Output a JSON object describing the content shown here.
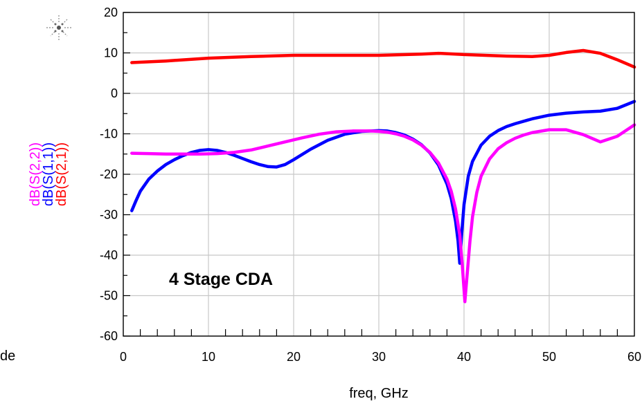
{
  "chart_data": {
    "type": "line",
    "title": "",
    "xlabel": "freq, GHz",
    "ylabels": [
      "dB(S(2,1))",
      "dB(S(1,1))",
      "dB(S(2,2))"
    ],
    "xlim": [
      0,
      60
    ],
    "ylim": [
      -60,
      20
    ],
    "xticks": [
      0,
      10,
      20,
      30,
      40,
      50,
      60
    ],
    "yticks": [
      20,
      10,
      0,
      -10,
      -20,
      -30,
      -40,
      -50,
      -60
    ],
    "grid": true,
    "annotation": "4 Stage CDA",
    "left_fragment": "de",
    "series": [
      {
        "name": "dB(S(2,1))",
        "color": "#ff0000",
        "x": [
          1,
          5,
          10,
          15,
          20,
          25,
          30,
          35,
          37,
          40,
          45,
          48,
          50,
          52,
          54,
          56,
          58,
          60
        ],
        "y": [
          7.6,
          8.0,
          8.7,
          9.1,
          9.4,
          9.4,
          9.4,
          9.7,
          9.9,
          9.6,
          9.2,
          9.1,
          9.4,
          10.1,
          10.6,
          9.9,
          8.3,
          6.5
        ]
      },
      {
        "name": "dB(S(1,1))",
        "color": "#0000ff",
        "x": [
          1,
          1.5,
          2,
          3,
          4,
          5,
          6,
          7,
          8,
          9,
          10,
          11,
          12,
          13,
          14,
          15,
          16,
          17,
          18,
          19,
          20,
          22,
          24,
          26,
          28,
          30,
          31,
          32,
          33,
          34,
          35,
          36,
          37,
          38,
          38.5,
          39,
          39.3,
          39.5,
          39.7,
          40,
          40.5,
          41,
          42,
          43,
          44,
          45,
          46,
          48,
          50,
          52,
          54,
          56,
          58,
          60
        ],
        "y": [
          -29,
          -26.5,
          -24.2,
          -21.2,
          -19.2,
          -17.6,
          -16.4,
          -15.4,
          -14.6,
          -14.1,
          -13.9,
          -14.1,
          -14.6,
          -15.3,
          -16.1,
          -16.9,
          -17.6,
          -18.1,
          -18.2,
          -17.6,
          -16.4,
          -13.8,
          -11.6,
          -10.1,
          -9.4,
          -9.2,
          -9.3,
          -9.7,
          -10.3,
          -11.3,
          -12.7,
          -14.7,
          -17.7,
          -22.4,
          -26.0,
          -31.5,
          -36.5,
          -42.0,
          -35.5,
          -27.5,
          -20.5,
          -16.8,
          -12.8,
          -10.6,
          -9.2,
          -8.2,
          -7.5,
          -6.3,
          -5.4,
          -4.9,
          -4.6,
          -4.4,
          -3.7,
          -2.0
        ]
      },
      {
        "name": "dB(S(2,2))",
        "color": "#ff00ff",
        "x": [
          1,
          3,
          5,
          7,
          9,
          11,
          13,
          15,
          17,
          19,
          21,
          23,
          25,
          27,
          29,
          30,
          31,
          32,
          33,
          34,
          35,
          36,
          37,
          38,
          38.5,
          39,
          39.5,
          39.8,
          40.1,
          40.4,
          40.7,
          41,
          41.5,
          42,
          43,
          44,
          45,
          46,
          47,
          48,
          50,
          52,
          54,
          56,
          58,
          60
        ],
        "y": [
          -14.8,
          -14.9,
          -15.0,
          -15.0,
          -15.0,
          -14.9,
          -14.6,
          -14.0,
          -13.0,
          -12.0,
          -11.0,
          -10.1,
          -9.5,
          -9.3,
          -9.3,
          -9.4,
          -9.6,
          -10.0,
          -10.6,
          -11.5,
          -12.8,
          -14.6,
          -17.2,
          -21.2,
          -24.2,
          -28.5,
          -35.0,
          -42.5,
          -51.5,
          -44.0,
          -36.5,
          -30.5,
          -24.5,
          -20.5,
          -16.2,
          -13.7,
          -12.2,
          -11.1,
          -10.3,
          -9.7,
          -9.0,
          -9.0,
          -10.2,
          -12.0,
          -10.6,
          -7.8
        ]
      }
    ]
  }
}
